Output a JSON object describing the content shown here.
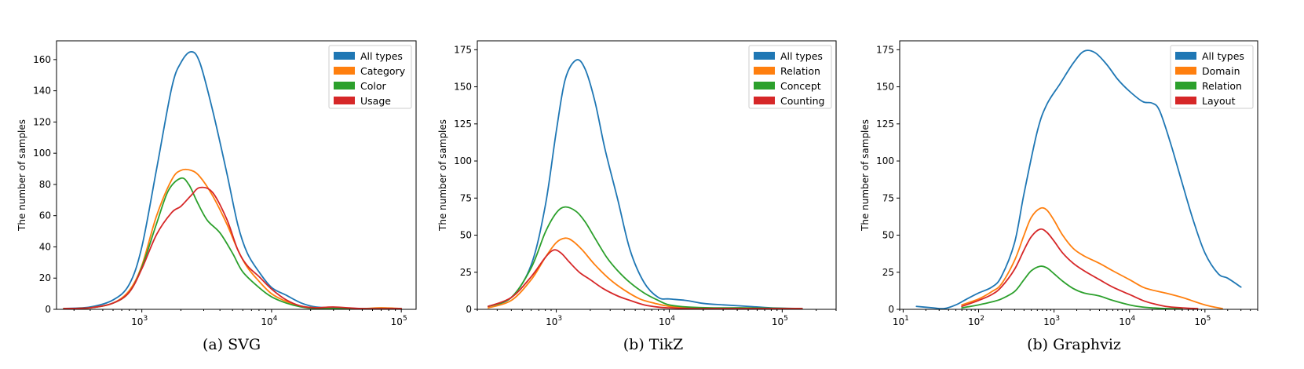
{
  "chart_data": [
    {
      "type": "line",
      "caption": "(a) SVG",
      "ylabel": "The number of samples",
      "xscale": "log",
      "xlim": [
        220,
        130000
      ],
      "ylim": [
        0,
        172
      ],
      "yticks": [
        0,
        20,
        40,
        60,
        80,
        100,
        120,
        140,
        160
      ],
      "xticks": [
        {
          "exp": 3
        },
        {
          "exp": 4
        },
        {
          "exp": 5
        }
      ],
      "legend_position": "top-right",
      "series": [
        {
          "name": "All types",
          "color": "#1f77b4",
          "x": [
            250,
            400,
            600,
            800,
            1000,
            1300,
            1700,
            2000,
            2400,
            2800,
            3500,
            4500,
            5500,
            6500,
            8000,
            10000,
            13000,
            17000,
            22000,
            30000,
            50000,
            100000
          ],
          "y": [
            0.5,
            1.5,
            6,
            16,
            40,
            90,
            142,
            158,
            165,
            158,
            128,
            88,
            54,
            36,
            24,
            14,
            9,
            4,
            1.5,
            1,
            0.5,
            0.5
          ]
        },
        {
          "name": "Category",
          "color": "#ff7f0e",
          "x": [
            250,
            400,
            600,
            800,
            1000,
            1300,
            1700,
            2000,
            2400,
            2800,
            3500,
            4500,
            5500,
            6500,
            8000,
            10000,
            13000,
            17000,
            22000,
            30000,
            50000,
            70000,
            100000
          ],
          "y": [
            0.5,
            1,
            4,
            12,
            28,
            60,
            83,
            89,
            89,
            85,
            73,
            55,
            38,
            27,
            18,
            10,
            5,
            2,
            1,
            0.5,
            0.5,
            1,
            0.5
          ]
        },
        {
          "name": "Color",
          "color": "#2ca02c",
          "x": [
            250,
            400,
            600,
            800,
            1000,
            1300,
            1600,
            2000,
            2300,
            2700,
            3200,
            4000,
            5000,
            6000,
            8000,
            10000,
            13000,
            17000,
            22000,
            30000,
            50000,
            100000
          ],
          "y": [
            0.5,
            1,
            4,
            11,
            27,
            55,
            76,
            84,
            80,
            68,
            57,
            49,
            36,
            24,
            14,
            8,
            4,
            1.5,
            0.5,
            0.5,
            0.5,
            0.5
          ]
        },
        {
          "name": "Usage",
          "color": "#d62728",
          "x": [
            250,
            400,
            600,
            800,
            1000,
            1300,
            1700,
            2000,
            2400,
            2800,
            3500,
            4500,
            5500,
            6500,
            8000,
            10000,
            13000,
            17000,
            22000,
            30000,
            50000,
            100000
          ],
          "y": [
            0.5,
            1,
            4,
            11,
            26,
            48,
            62,
            66,
            73,
            78,
            75,
            58,
            38,
            28,
            21,
            13,
            6,
            2,
            1,
            1.5,
            0.5,
            0.5
          ]
        }
      ]
    },
    {
      "type": "line",
      "caption": "(b) TikZ",
      "ylabel": "The number of samples",
      "xscale": "log",
      "xlim": [
        200,
        300000
      ],
      "ylim": [
        0,
        181
      ],
      "yticks": [
        0,
        25,
        50,
        75,
        100,
        125,
        150,
        175
      ],
      "xticks": [
        {
          "exp": 3
        },
        {
          "exp": 4
        },
        {
          "exp": 5
        }
      ],
      "legend_position": "top-right",
      "series": [
        {
          "name": "All types",
          "color": "#1f77b4",
          "x": [
            250,
            400,
            600,
            800,
            1000,
            1200,
            1500,
            1800,
            2200,
            2700,
            3500,
            4500,
            6000,
            8000,
            10000,
            14000,
            20000,
            30000,
            50000,
            80000,
            150000
          ],
          "y": [
            2,
            8,
            30,
            70,
            120,
            155,
            168,
            162,
            140,
            108,
            74,
            40,
            18,
            8,
            7,
            6,
            4,
            3,
            2,
            1,
            0.5
          ]
        },
        {
          "name": "Relation",
          "color": "#ff7f0e",
          "x": [
            250,
            400,
            600,
            800,
            1000,
            1200,
            1400,
            1700,
            2200,
            3000,
            4000,
            5500,
            7500,
            10000,
            15000,
            25000,
            50000,
            150000
          ],
          "y": [
            1,
            6,
            20,
            35,
            45,
            48,
            46,
            40,
            30,
            20,
            13,
            7,
            4,
            2,
            1,
            0.5,
            0.5,
            0.5
          ]
        },
        {
          "name": "Concept",
          "color": "#2ca02c",
          "x": [
            250,
            400,
            600,
            800,
            1000,
            1200,
            1500,
            1800,
            2200,
            2800,
            3500,
            4500,
            6000,
            8000,
            10000,
            15000,
            25000,
            50000,
            150000
          ],
          "y": [
            2,
            8,
            28,
            52,
            65,
            69,
            66,
            59,
            48,
            35,
            26,
            18,
            11,
            6,
            3,
            1.5,
            1,
            1,
            0.5
          ]
        },
        {
          "name": "Counting",
          "color": "#d62728",
          "x": [
            250,
            400,
            600,
            800,
            950,
            1100,
            1300,
            1600,
            2000,
            2600,
            3500,
            4500,
            6000,
            8000,
            10000,
            15000,
            25000,
            50000,
            150000
          ],
          "y": [
            2,
            8,
            22,
            35,
            40,
            38,
            32,
            25,
            20,
            14,
            9,
            6,
            3,
            1.5,
            1,
            0.5,
            0.5,
            0.5,
            0.5
          ]
        }
      ]
    },
    {
      "type": "line",
      "caption": "(b) Graphviz",
      "ylabel": "The number of samples",
      "xscale": "log",
      "xlim": [
        9,
        500000
      ],
      "ylim": [
        0,
        181
      ],
      "yticks": [
        0,
        25,
        50,
        75,
        100,
        125,
        150,
        175
      ],
      "xticks": [
        {
          "exp": 1
        },
        {
          "exp": 2
        },
        {
          "exp": 3
        },
        {
          "exp": 4
        },
        {
          "exp": 5
        }
      ],
      "legend_position": "top-right",
      "series": [
        {
          "name": "All types",
          "color": "#1f77b4",
          "x": [
            15,
            25,
            35,
            50,
            70,
            100,
            150,
            200,
            300,
            400,
            600,
            800,
            1200,
            1800,
            2500,
            3500,
            5000,
            7000,
            10000,
            15000,
            20000,
            25000,
            35000,
            50000,
            70000,
            100000,
            150000,
            200000,
            300000
          ],
          "y": [
            2,
            1,
            0.5,
            3,
            7,
            11,
            15,
            22,
            45,
            78,
            120,
            138,
            152,
            166,
            174,
            173,
            165,
            155,
            147,
            140,
            139,
            134,
            112,
            85,
            60,
            38,
            24,
            21,
            15
          ]
        },
        {
          "name": "Domain",
          "color": "#ff7f0e",
          "x": [
            60,
            100,
            150,
            200,
            300,
            400,
            500,
            650,
            800,
            1000,
            1300,
            1800,
            2500,
            4000,
            6000,
            10000,
            15000,
            20000,
            30000,
            50000,
            100000,
            170000
          ],
          "y": [
            3,
            7,
            12,
            17,
            33,
            50,
            62,
            68,
            67,
            60,
            50,
            41,
            36,
            31,
            26,
            20,
            15,
            13,
            11,
            8,
            3,
            0.5
          ]
        },
        {
          "name": "Relation",
          "color": "#2ca02c",
          "x": [
            60,
            100,
            150,
            200,
            300,
            400,
            500,
            650,
            800,
            1000,
            1300,
            1800,
            2500,
            4000,
            6000,
            10000,
            15000,
            20000,
            30000,
            50000
          ],
          "y": [
            1,
            3,
            5,
            7,
            12,
            20,
            26,
            29,
            28,
            24,
            19,
            14,
            11,
            9,
            6,
            3,
            1.5,
            1,
            0.5,
            0.5
          ]
        },
        {
          "name": "Layout",
          "color": "#d62728",
          "x": [
            60,
            100,
            150,
            200,
            300,
            400,
            500,
            650,
            800,
            1000,
            1300,
            1800,
            2500,
            4000,
            6000,
            10000,
            15000,
            20000,
            30000,
            50000,
            80000
          ],
          "y": [
            2,
            6,
            10,
            15,
            27,
            40,
            49,
            54,
            52,
            46,
            38,
            31,
            26,
            20,
            15,
            10,
            6,
            4,
            2,
            1,
            0.5
          ]
        }
      ]
    }
  ]
}
